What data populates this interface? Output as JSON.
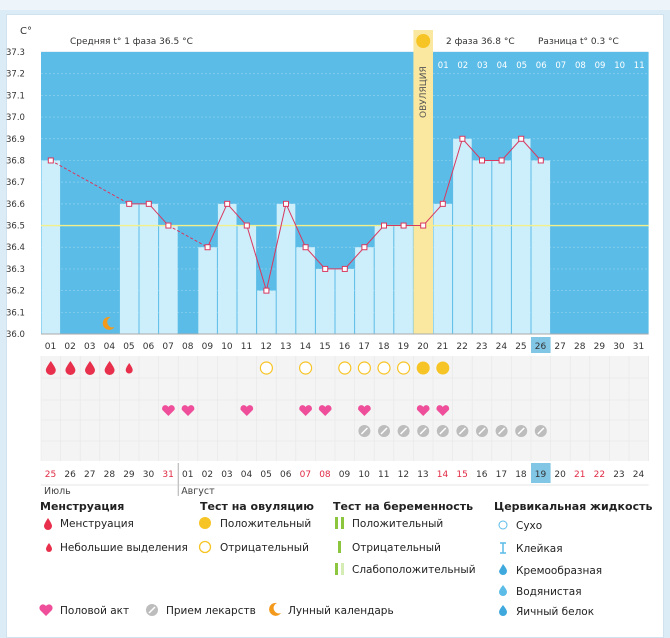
{
  "chart_data": {
    "type": "line",
    "title": "",
    "ylabel": "C°",
    "ylim": [
      36.0,
      37.3
    ],
    "yticks": [
      "36.0",
      "36.1",
      "36.2",
      "36.3",
      "36.4",
      "36.5",
      "36.6",
      "36.7",
      "36.8",
      "36.9",
      "37.0",
      "37.1",
      "37.2",
      "37.3"
    ],
    "days": [
      "01",
      "02",
      "03",
      "04",
      "05",
      "06",
      "07",
      "08",
      "09",
      "10",
      "11",
      "12",
      "13",
      "14",
      "15",
      "16",
      "17",
      "18",
      "19",
      "20",
      "21",
      "22",
      "23",
      "24",
      "25",
      "26",
      "27",
      "28",
      "29",
      "30",
      "31"
    ],
    "temps": [
      36.8,
      null,
      null,
      null,
      36.6,
      36.6,
      36.5,
      null,
      36.4,
      36.6,
      36.5,
      36.2,
      36.6,
      36.4,
      36.3,
      36.3,
      36.4,
      36.5,
      36.5,
      36.5,
      36.6,
      36.9,
      36.8,
      36.8,
      36.9,
      36.8,
      null,
      null,
      null,
      null,
      null
    ],
    "dashed_segments": [
      [
        1,
        5
      ],
      [
        7,
        9
      ]
    ],
    "coverline": 36.5,
    "ovulation_day": 20,
    "ovulation_label": "ОВУЛЯЦИЯ",
    "phase2_days": [
      "01",
      "02",
      "03",
      "04",
      "05",
      "06",
      "07",
      "08",
      "09",
      "10",
      "11"
    ],
    "today_day": 26,
    "phase1_label": "Средняя t° 1 фаза",
    "phase1_value": "36.5 °C",
    "phase2_label": "2 фаза",
    "phase2_value": "36.8 °C",
    "diff_label": "Разница t°",
    "diff_value": "0.3 °C",
    "menstruation": [
      {
        "day": 1,
        "type": "full"
      },
      {
        "day": 2,
        "type": "full"
      },
      {
        "day": 3,
        "type": "full"
      },
      {
        "day": 4,
        "type": "full"
      },
      {
        "day": 5,
        "type": "light"
      }
    ],
    "ovulation_tests": [
      {
        "day": 12,
        "result": "negative"
      },
      {
        "day": 14,
        "result": "negative"
      },
      {
        "day": 16,
        "result": "negative"
      },
      {
        "day": 17,
        "result": "negative"
      },
      {
        "day": 18,
        "result": "negative"
      },
      {
        "day": 19,
        "result": "negative"
      },
      {
        "day": 20,
        "result": "positive"
      },
      {
        "day": 21,
        "result": "positive"
      }
    ],
    "intercourse_days": [
      7,
      8,
      11,
      14,
      15,
      17,
      20,
      21
    ],
    "medication_days": [
      17,
      18,
      19,
      20,
      21,
      22,
      23,
      24,
      25,
      26
    ],
    "lunar_day": 4,
    "calendar_dates": [
      "25",
      "26",
      "27",
      "28",
      "29",
      "30",
      "31",
      "01",
      "02",
      "03",
      "04",
      "05",
      "06",
      "07",
      "08",
      "09",
      "10",
      "11",
      "12",
      "13",
      "14",
      "15",
      "16",
      "17",
      "18",
      "19",
      "20",
      "21",
      "22",
      "23",
      "24"
    ],
    "weekend_indices": [
      0,
      6,
      13,
      14,
      20,
      21,
      27,
      28
    ],
    "today_index": 25,
    "month_labels": [
      {
        "index": 0,
        "label": "Июль"
      },
      {
        "index": 7,
        "label": "Август"
      }
    ]
  },
  "legend": {
    "menstruation": {
      "title": "Менструация",
      "items": [
        "Менструация",
        "Небольшие выделения"
      ]
    },
    "ovulation_test": {
      "title": "Тест на овуляцию",
      "items": [
        "Положительный",
        "Отрицательный"
      ]
    },
    "pregnancy_test": {
      "title": "Тест на беременность",
      "items": [
        "Положительный",
        "Отрицательный",
        "Слабоположительный"
      ]
    },
    "cervical": {
      "title": "Цервикальная жидкость",
      "items": [
        "Сухо",
        "Клейкая",
        "Кремообразная",
        "Водянистая",
        "Яичный белок"
      ]
    },
    "bottom": [
      "Половой акт",
      "Прием лекарств",
      "Лунный календарь"
    ]
  },
  "colors": {
    "bg_blue": "#5bbce7",
    "bar": "#cdeefb",
    "line": "#d9385f",
    "ovulation": "#fbe8a0",
    "coverline": "#f3f08a",
    "menstruation": "#e8304c",
    "heart": "#ef4f9a",
    "sun": "#f7c425",
    "pill": "#bdbdbd",
    "moon": "#f39a1d",
    "today": "#82c6e6"
  }
}
